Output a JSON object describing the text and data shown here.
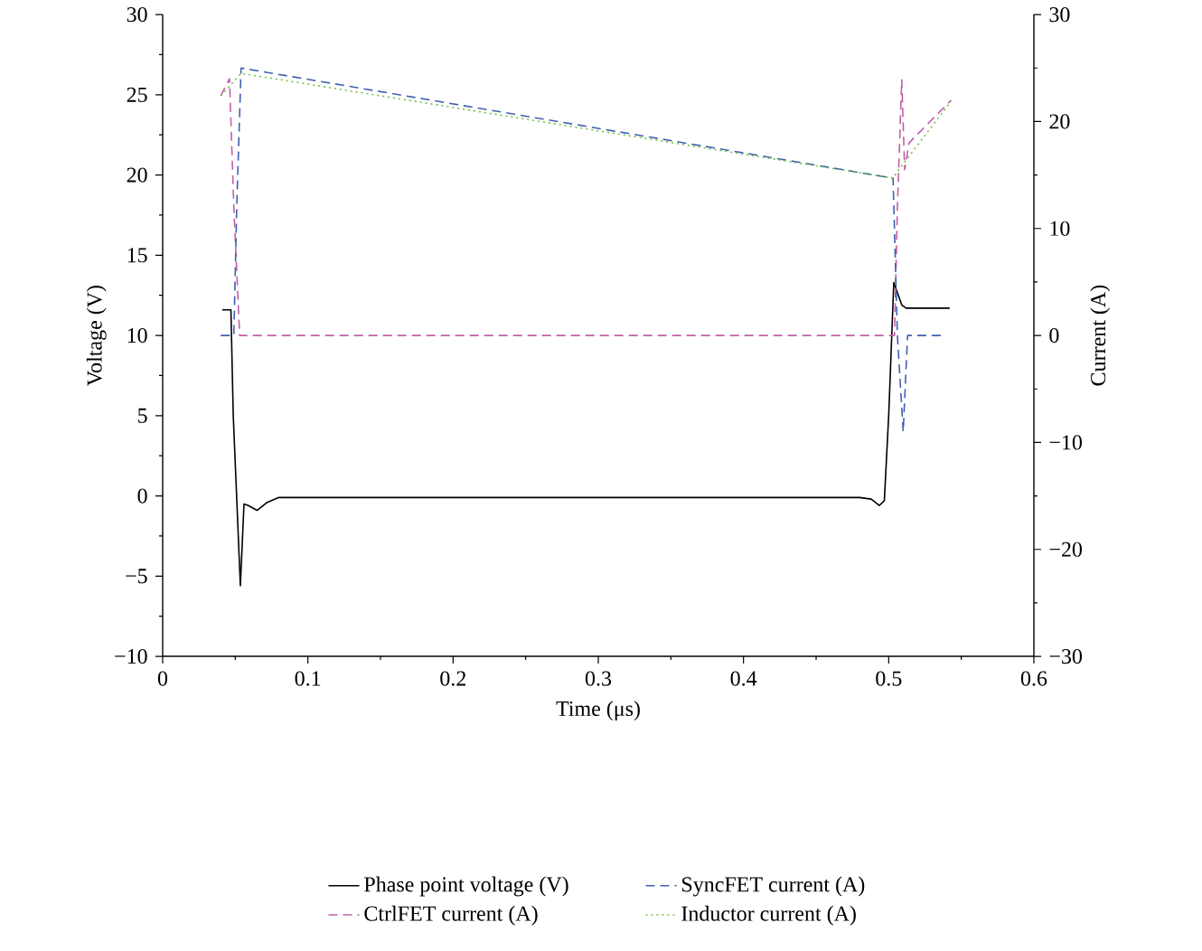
{
  "chart_data": {
    "type": "line",
    "xlabel": "Time (μs)",
    "ylabel": "Voltage (V)",
    "y2label": "Current (A)",
    "xlim": [
      0,
      0.6
    ],
    "xticks": [
      0,
      0.1,
      0.2,
      0.3,
      0.4,
      0.5,
      0.6
    ],
    "ylim": [
      -10,
      30
    ],
    "yticks": [
      {
        "value": -10,
        "label": "−10"
      },
      {
        "value": -5,
        "label": "−5"
      },
      0,
      5,
      10,
      15,
      20,
      25,
      30
    ],
    "y2lim": [
      -30,
      30
    ],
    "y2ticks": [
      {
        "value": -30,
        "label": "−30"
      },
      {
        "value": -20,
        "label": "−20"
      },
      {
        "value": -10,
        "label": "−10"
      },
      0,
      10,
      20,
      30
    ],
    "legend": "bottom",
    "grid": false,
    "series": [
      {
        "name": "Phase point voltage (V)",
        "color": "#000000",
        "line_style": "solid",
        "x": [
          0.041,
          0.047,
          0.0486,
          0.0535,
          0.056,
          0.059,
          0.065,
          0.072,
          0.08,
          0.1,
          0.2,
          0.3,
          0.4,
          0.48,
          0.488,
          0.4935,
          0.497,
          0.5,
          0.5035,
          0.509,
          0.512,
          0.525,
          0.542
        ],
        "values": [
          11.6,
          11.6,
          5,
          -5.6,
          -0.5,
          -0.6,
          -0.9,
          -0.4,
          -0.1,
          -0.1,
          -0.1,
          -0.1,
          -0.1,
          -0.1,
          -0.2,
          -0.6,
          -0.3,
          5,
          13.3,
          11.9,
          11.7,
          11.7,
          11.7
        ]
      },
      {
        "name": "CtrlFET current (A)",
        "color": "#c060a8",
        "line_style": "dashed",
        "axis": "y2",
        "x": [
          0.04,
          0.046,
          0.049,
          0.053,
          0.504,
          0.506,
          0.509,
          0.511,
          0.514,
          0.543
        ],
        "values": [
          22.4,
          24,
          12,
          0,
          0,
          12,
          23.9,
          15.5,
          18,
          22
        ]
      },
      {
        "name": "SyncFET current (A)",
        "color": "#4060b0",
        "line_style": "dashed",
        "axis": "y2",
        "x": [
          0.04,
          0.049,
          0.051,
          0.054,
          0.503,
          0.506,
          0.51,
          0.513,
          0.537
        ],
        "values": [
          0,
          0,
          12,
          25,
          14.7,
          0,
          -9,
          0,
          0
        ]
      },
      {
        "name": "Inductor current (A)",
        "color": "#70c040",
        "line_style": "dotted",
        "axis": "y2",
        "x": [
          0.04,
          0.054,
          0.503,
          0.507,
          0.543
        ],
        "values": [
          22.4,
          24.5,
          14.7,
          15.5,
          21.9
        ]
      }
    ]
  }
}
